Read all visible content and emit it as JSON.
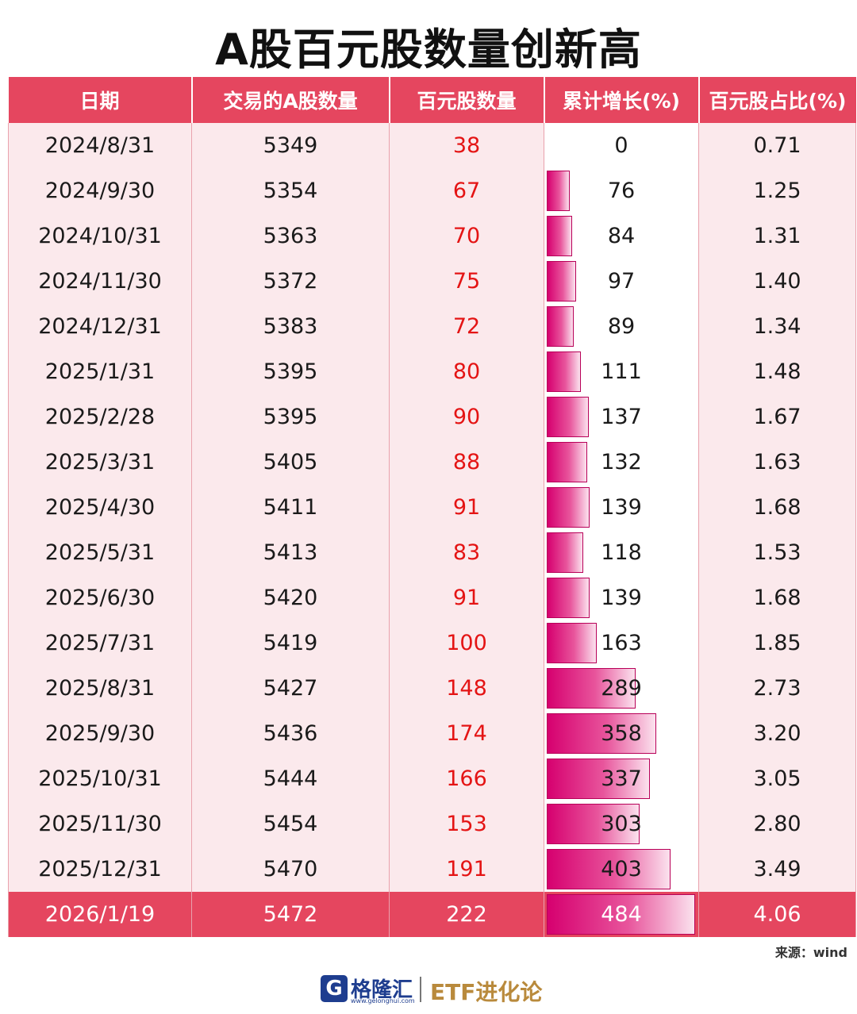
{
  "title": "A股百元股数量创新高",
  "headers": [
    "日期",
    "交易的A股数量",
    "百元股数量",
    "累计增长(%)",
    "百元股占比(%)"
  ],
  "rows": [
    {
      "date": "2024/8/31",
      "total": "5349",
      "count": "38",
      "growth": "0",
      "share": "0.71"
    },
    {
      "date": "2024/9/30",
      "total": "5354",
      "count": "67",
      "growth": "76",
      "share": "1.25"
    },
    {
      "date": "2024/10/31",
      "total": "5363",
      "count": "70",
      "growth": "84",
      "share": "1.31"
    },
    {
      "date": "2024/11/30",
      "total": "5372",
      "count": "75",
      "growth": "97",
      "share": "1.40"
    },
    {
      "date": "2024/12/31",
      "total": "5383",
      "count": "72",
      "growth": "89",
      "share": "1.34"
    },
    {
      "date": "2025/1/31",
      "total": "5395",
      "count": "80",
      "growth": "111",
      "share": "1.48"
    },
    {
      "date": "2025/2/28",
      "total": "5395",
      "count": "90",
      "growth": "137",
      "share": "1.67"
    },
    {
      "date": "2025/3/31",
      "total": "5405",
      "count": "88",
      "growth": "132",
      "share": "1.63"
    },
    {
      "date": "2025/4/30",
      "total": "5411",
      "count": "91",
      "growth": "139",
      "share": "1.68"
    },
    {
      "date": "2025/5/31",
      "total": "5413",
      "count": "83",
      "growth": "118",
      "share": "1.53"
    },
    {
      "date": "2025/6/30",
      "total": "5420",
      "count": "91",
      "growth": "139",
      "share": "1.68"
    },
    {
      "date": "2025/7/31",
      "total": "5419",
      "count": "100",
      "growth": "163",
      "share": "1.85"
    },
    {
      "date": "2025/8/31",
      "total": "5427",
      "count": "148",
      "growth": "289",
      "share": "2.73"
    },
    {
      "date": "2025/9/30",
      "total": "5436",
      "count": "174",
      "growth": "358",
      "share": "3.20"
    },
    {
      "date": "2025/10/31",
      "total": "5444",
      "count": "166",
      "growth": "337",
      "share": "3.05"
    },
    {
      "date": "2025/11/30",
      "total": "5454",
      "count": "153",
      "growth": "303",
      "share": "2.80"
    },
    {
      "date": "2025/12/31",
      "total": "5470",
      "count": "191",
      "growth": "403",
      "share": "3.49"
    },
    {
      "date": "2026/1/19",
      "total": "5472",
      "count": "222",
      "growth": "484",
      "share": "4.06"
    }
  ],
  "source": "来源：wind",
  "footer": {
    "logo_letter": "G",
    "logo_name": "格隆汇",
    "logo_url": "www.gelonghui.com",
    "brand": "ETF进化论"
  },
  "colors": {
    "header_bg": "#e5465f",
    "row_bg": "#fbe9ec",
    "count_text": "#e41414",
    "bar": "#d6006f"
  }
}
